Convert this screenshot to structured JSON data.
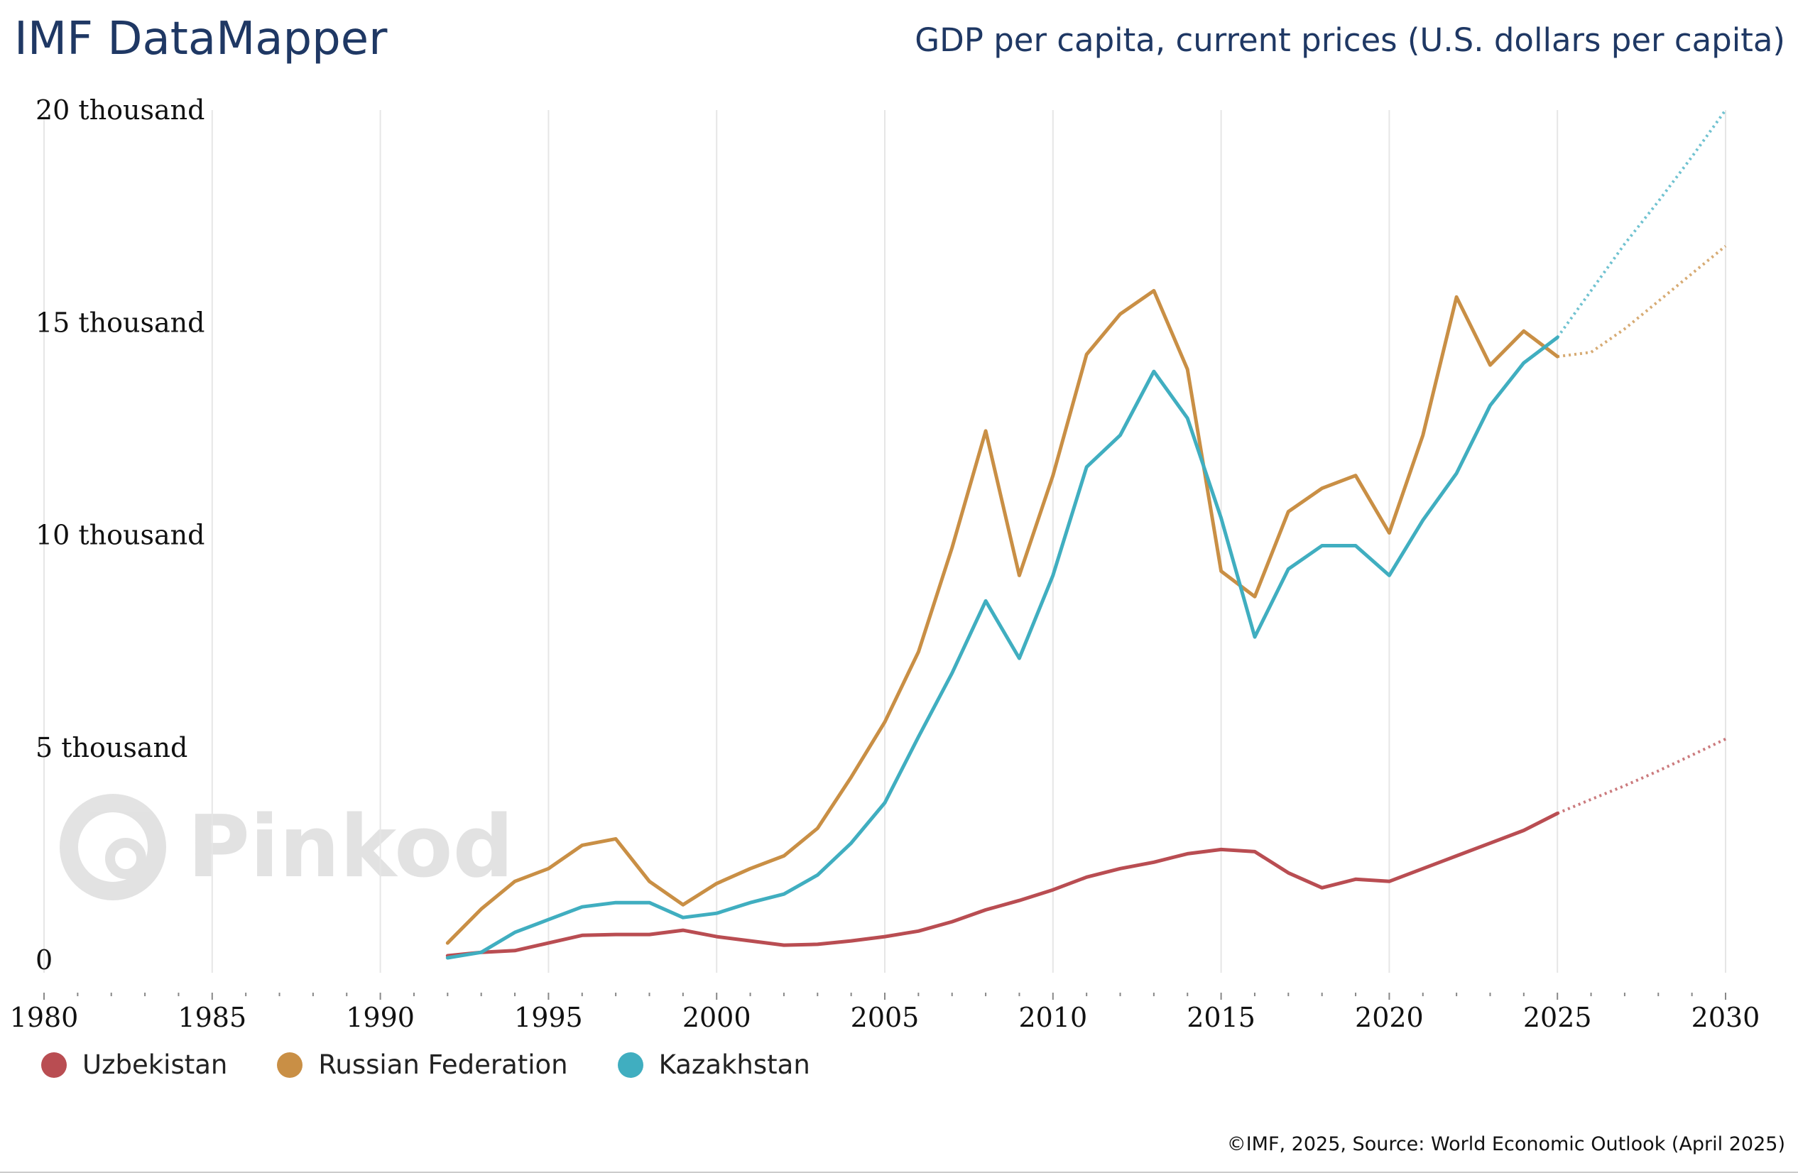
{
  "header": {
    "brand": "IMF DataMapper",
    "title": "GDP per capita, current prices (U.S. dollars per capita)"
  },
  "footer": {
    "source": "©IMF, 2025, Source: World Economic Outlook (April 2025)"
  },
  "watermark": {
    "text": "Pinkod"
  },
  "chart_data": {
    "type": "line",
    "title": "GDP per capita, current prices (U.S. dollars per capita)",
    "xlabel": "",
    "ylabel": "",
    "xlim": [
      1980,
      2030
    ],
    "ylim": [
      0,
      20000
    ],
    "x_ticks": [
      1980,
      1985,
      1990,
      1995,
      2000,
      2005,
      2010,
      2015,
      2020,
      2025,
      2030
    ],
    "y_ticks": [
      {
        "value": 0,
        "label": "0"
      },
      {
        "value": 5000,
        "label": "5 thousand"
      },
      {
        "value": 10000,
        "label": "10 thousand"
      },
      {
        "value": 15000,
        "label": "15 thousand"
      },
      {
        "value": 20000,
        "label": "20 thousand"
      }
    ],
    "grid": "vertical",
    "legend_position": "bottom-left",
    "projection_start": 2025,
    "series": [
      {
        "name": "Uzbekistan",
        "color": "#b94d52",
        "x": [
          1992,
          1993,
          1994,
          1995,
          1996,
          1997,
          1998,
          1999,
          2000,
          2001,
          2002,
          2003,
          2004,
          2005,
          2006,
          2007,
          2008,
          2009,
          2010,
          2011,
          2012,
          2013,
          2014,
          2015,
          2016,
          2017,
          2018,
          2019,
          2020,
          2021,
          2022,
          2023,
          2024,
          2025,
          2026,
          2027,
          2028,
          2029,
          2030
        ],
        "values": [
          100,
          180,
          220,
          400,
          580,
          600,
          600,
          700,
          550,
          450,
          350,
          370,
          450,
          550,
          680,
          900,
          1180,
          1400,
          1650,
          1950,
          2150,
          2300,
          2500,
          2600,
          2550,
          2050,
          1700,
          1900,
          1850,
          2150,
          2450,
          2750,
          3050,
          3450,
          3780,
          4100,
          4450,
          4820,
          5200
        ]
      },
      {
        "name": "Russian Federation",
        "color": "#c98f45",
        "x": [
          1992,
          1993,
          1994,
          1995,
          1996,
          1997,
          1998,
          1999,
          2000,
          2001,
          2002,
          2003,
          2004,
          2005,
          2006,
          2007,
          2008,
          2009,
          2010,
          2011,
          2012,
          2013,
          2014,
          2015,
          2016,
          2017,
          2018,
          2019,
          2020,
          2021,
          2022,
          2023,
          2024,
          2025,
          2026,
          2027,
          2028,
          2029,
          2030
        ],
        "values": [
          400,
          1200,
          1850,
          2150,
          2700,
          2850,
          1850,
          1300,
          1800,
          2150,
          2450,
          3100,
          4300,
          5600,
          7250,
          9700,
          12450,
          9050,
          11400,
          14250,
          15200,
          15750,
          13900,
          9150,
          8550,
          10550,
          11100,
          11400,
          10050,
          12350,
          15600,
          14000,
          14800,
          14200,
          14300,
          14850,
          15500,
          16150,
          16800
        ]
      },
      {
        "name": "Kazakhstan",
        "color": "#40aec0",
        "x": [
          1992,
          1993,
          1994,
          1995,
          1996,
          1997,
          1998,
          1999,
          2000,
          2001,
          2002,
          2003,
          2004,
          2005,
          2006,
          2007,
          2008,
          2009,
          2010,
          2011,
          2012,
          2013,
          2014,
          2015,
          2016,
          2017,
          2018,
          2019,
          2020,
          2021,
          2022,
          2023,
          2024,
          2025,
          2026,
          2027,
          2028,
          2029,
          2030
        ],
        "values": [
          50,
          180,
          650,
          950,
          1250,
          1350,
          1350,
          1000,
          1100,
          1350,
          1550,
          2000,
          2750,
          3700,
          5250,
          6750,
          8450,
          7100,
          9050,
          11600,
          12350,
          13850,
          12750,
          10400,
          7600,
          9200,
          9750,
          9750,
          9050,
          10350,
          11450,
          13050,
          14050,
          14650,
          15750,
          16850,
          17850,
          18900,
          20000
        ]
      }
    ]
  }
}
